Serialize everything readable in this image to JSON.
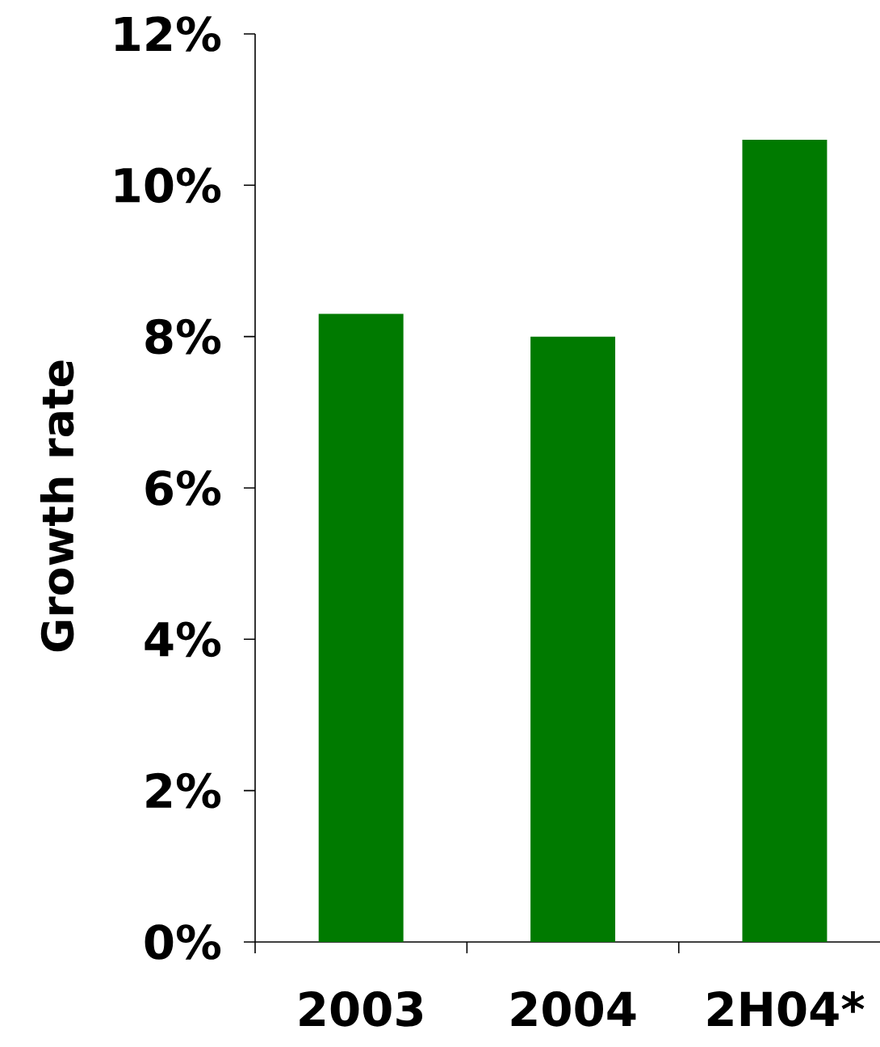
{
  "chart_data": {
    "type": "bar",
    "ylabel": "Growth rate",
    "categories": [
      "2003",
      "2004",
      "2H04*"
    ],
    "values": [
      8.3,
      8.0,
      10.6
    ],
    "color": "#007a00",
    "ylim": [
      0,
      12
    ],
    "yticks": [
      {
        "value": 0,
        "label": "0%"
      },
      {
        "value": 2,
        "label": "2%"
      },
      {
        "value": 4,
        "label": "4%"
      },
      {
        "value": 6,
        "label": "6%"
      },
      {
        "value": 8,
        "label": "8%"
      },
      {
        "value": 10,
        "label": "10%"
      },
      {
        "value": 12,
        "label": "12%"
      }
    ],
    "grid": false
  }
}
